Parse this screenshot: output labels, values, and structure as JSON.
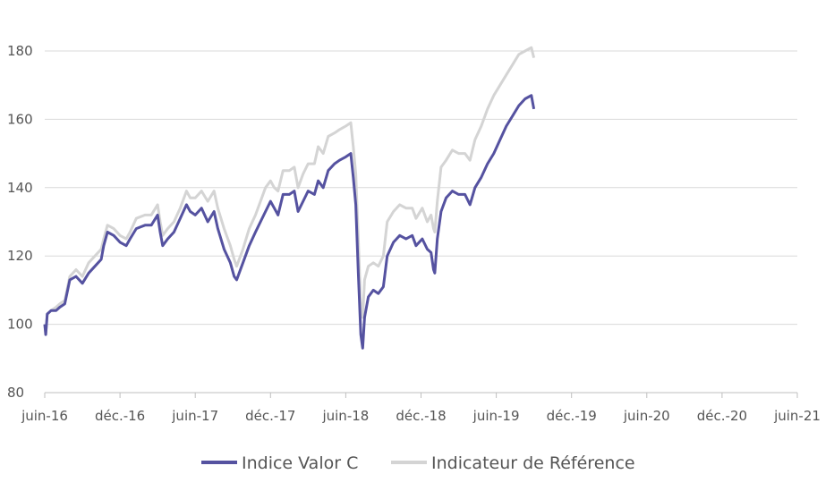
{
  "chart_data": {
    "type": "line",
    "title": "",
    "xlabel": "",
    "ylabel": "",
    "ylim": [
      80,
      180
    ],
    "y_ticks": [
      "80",
      "100",
      "120",
      "140",
      "160",
      "180"
    ],
    "x_ticks": [
      "juin-16",
      "déc.-16",
      "juin-17",
      "déc.-17",
      "juin-18",
      "déc.-18",
      "juin-19",
      "déc.-19",
      "juin-20",
      "déc.-20",
      "juin-21"
    ],
    "grid": "horizontal",
    "legend_position": "bottom-center",
    "series": [
      {
        "name": "Indice Valor C",
        "color": "#5552a0",
        "points": [
          [
            0,
            100
          ],
          [
            0.08,
            97
          ],
          [
            0.2,
            103
          ],
          [
            0.5,
            104
          ],
          [
            0.9,
            104
          ],
          [
            1.2,
            105
          ],
          [
            1.6,
            106
          ],
          [
            2.0,
            113
          ],
          [
            2.5,
            114
          ],
          [
            3.0,
            112
          ],
          [
            3.5,
            115
          ],
          [
            4.0,
            117
          ],
          [
            4.5,
            119
          ],
          [
            4.7,
            123
          ],
          [
            5.0,
            127
          ],
          [
            5.5,
            126
          ],
          [
            6.0,
            124
          ],
          [
            6.5,
            123
          ],
          [
            6.8,
            125
          ],
          [
            7.3,
            128
          ],
          [
            8.0,
            129
          ],
          [
            8.5,
            129
          ],
          [
            9.0,
            132
          ],
          [
            9.2,
            127
          ],
          [
            9.4,
            123
          ],
          [
            9.8,
            125
          ],
          [
            10.3,
            127
          ],
          [
            10.8,
            131
          ],
          [
            11.3,
            135
          ],
          [
            11.6,
            133
          ],
          [
            12.0,
            132
          ],
          [
            12.5,
            134
          ],
          [
            13.0,
            130
          ],
          [
            13.5,
            133
          ],
          [
            13.8,
            128
          ],
          [
            14.3,
            122
          ],
          [
            14.8,
            118
          ],
          [
            15.1,
            114
          ],
          [
            15.3,
            113
          ],
          [
            15.8,
            118
          ],
          [
            16.3,
            123
          ],
          [
            16.8,
            127
          ],
          [
            17.2,
            130
          ],
          [
            17.6,
            133
          ],
          [
            18.0,
            136
          ],
          [
            18.3,
            134
          ],
          [
            18.6,
            132
          ],
          [
            19.0,
            138
          ],
          [
            19.5,
            138
          ],
          [
            19.9,
            139
          ],
          [
            20.2,
            133
          ],
          [
            20.6,
            136
          ],
          [
            21.0,
            139
          ],
          [
            21.5,
            138
          ],
          [
            21.8,
            142
          ],
          [
            22.2,
            140
          ],
          [
            22.6,
            145
          ],
          [
            23.1,
            147
          ],
          [
            23.5,
            148
          ],
          [
            24.0,
            149
          ],
          [
            24.4,
            150
          ],
          [
            24.6,
            143
          ],
          [
            24.8,
            135
          ],
          [
            25.0,
            115
          ],
          [
            25.2,
            97
          ],
          [
            25.35,
            93
          ],
          [
            25.5,
            102
          ],
          [
            25.8,
            108
          ],
          [
            26.2,
            110
          ],
          [
            26.6,
            109
          ],
          [
            27.0,
            111
          ],
          [
            27.3,
            120
          ],
          [
            27.8,
            124
          ],
          [
            28.3,
            126
          ],
          [
            28.8,
            125
          ],
          [
            29.3,
            126
          ],
          [
            29.6,
            123
          ],
          [
            30.1,
            125
          ],
          [
            30.5,
            122
          ],
          [
            30.8,
            121
          ],
          [
            31.0,
            116
          ],
          [
            31.1,
            115
          ],
          [
            31.3,
            125
          ],
          [
            31.6,
            133
          ],
          [
            32.0,
            137
          ],
          [
            32.5,
            139
          ],
          [
            33.0,
            138
          ],
          [
            33.5,
            138
          ],
          [
            33.9,
            135
          ],
          [
            34.3,
            140
          ],
          [
            34.8,
            143
          ],
          [
            35.3,
            147
          ],
          [
            35.8,
            150
          ],
          [
            36.3,
            154
          ],
          [
            36.8,
            158
          ],
          [
            37.3,
            161
          ],
          [
            37.8,
            164
          ],
          [
            38.3,
            166
          ],
          [
            38.8,
            167
          ],
          [
            39.0,
            163
          ]
        ]
      },
      {
        "name": "Indicateur de Référence",
        "color": "#d4d4d4",
        "points": [
          [
            0,
            100
          ],
          [
            0.08,
            97
          ],
          [
            0.2,
            103
          ],
          [
            0.5,
            104
          ],
          [
            0.9,
            105
          ],
          [
            1.2,
            106
          ],
          [
            1.6,
            107
          ],
          [
            2.0,
            114
          ],
          [
            2.5,
            116
          ],
          [
            3.0,
            114
          ],
          [
            3.5,
            118
          ],
          [
            4.0,
            120
          ],
          [
            4.5,
            122
          ],
          [
            4.7,
            125
          ],
          [
            5.0,
            129
          ],
          [
            5.5,
            128
          ],
          [
            6.0,
            126
          ],
          [
            6.5,
            125
          ],
          [
            6.8,
            127
          ],
          [
            7.3,
            131
          ],
          [
            8.0,
            132
          ],
          [
            8.5,
            132
          ],
          [
            9.0,
            135
          ],
          [
            9.2,
            130
          ],
          [
            9.4,
            126
          ],
          [
            9.8,
            128
          ],
          [
            10.3,
            130
          ],
          [
            10.8,
            134
          ],
          [
            11.3,
            139
          ],
          [
            11.6,
            137
          ],
          [
            12.0,
            137
          ],
          [
            12.5,
            139
          ],
          [
            13.0,
            136
          ],
          [
            13.5,
            139
          ],
          [
            13.8,
            134
          ],
          [
            14.3,
            128
          ],
          [
            14.8,
            123
          ],
          [
            15.1,
            119
          ],
          [
            15.3,
            117
          ],
          [
            15.8,
            122
          ],
          [
            16.3,
            128
          ],
          [
            16.8,
            132
          ],
          [
            17.2,
            136
          ],
          [
            17.6,
            140
          ],
          [
            18.0,
            142
          ],
          [
            18.3,
            140
          ],
          [
            18.6,
            139
          ],
          [
            19.0,
            145
          ],
          [
            19.5,
            145
          ],
          [
            19.9,
            146
          ],
          [
            20.2,
            140
          ],
          [
            20.6,
            144
          ],
          [
            21.0,
            147
          ],
          [
            21.5,
            147
          ],
          [
            21.8,
            152
          ],
          [
            22.2,
            150
          ],
          [
            22.6,
            155
          ],
          [
            23.1,
            156
          ],
          [
            23.5,
            157
          ],
          [
            24.0,
            158
          ],
          [
            24.4,
            159
          ],
          [
            24.6,
            152
          ],
          [
            24.8,
            144
          ],
          [
            25.0,
            125
          ],
          [
            25.2,
            105
          ],
          [
            25.35,
            102
          ],
          [
            25.5,
            113
          ],
          [
            25.8,
            117
          ],
          [
            26.2,
            118
          ],
          [
            26.6,
            117
          ],
          [
            27.0,
            120
          ],
          [
            27.3,
            130
          ],
          [
            27.8,
            133
          ],
          [
            28.3,
            135
          ],
          [
            28.8,
            134
          ],
          [
            29.3,
            134
          ],
          [
            29.6,
            131
          ],
          [
            30.1,
            134
          ],
          [
            30.5,
            130
          ],
          [
            30.8,
            132
          ],
          [
            31.0,
            128
          ],
          [
            31.1,
            127
          ],
          [
            31.3,
            136
          ],
          [
            31.6,
            146
          ],
          [
            32.0,
            148
          ],
          [
            32.5,
            151
          ],
          [
            33.0,
            150
          ],
          [
            33.5,
            150
          ],
          [
            33.9,
            148
          ],
          [
            34.3,
            154
          ],
          [
            34.8,
            158
          ],
          [
            35.3,
            163
          ],
          [
            35.8,
            167
          ],
          [
            36.3,
            170
          ],
          [
            36.8,
            173
          ],
          [
            37.3,
            176
          ],
          [
            37.8,
            179
          ],
          [
            38.3,
            180
          ],
          [
            38.8,
            181
          ],
          [
            39.0,
            178
          ]
        ]
      }
    ]
  }
}
